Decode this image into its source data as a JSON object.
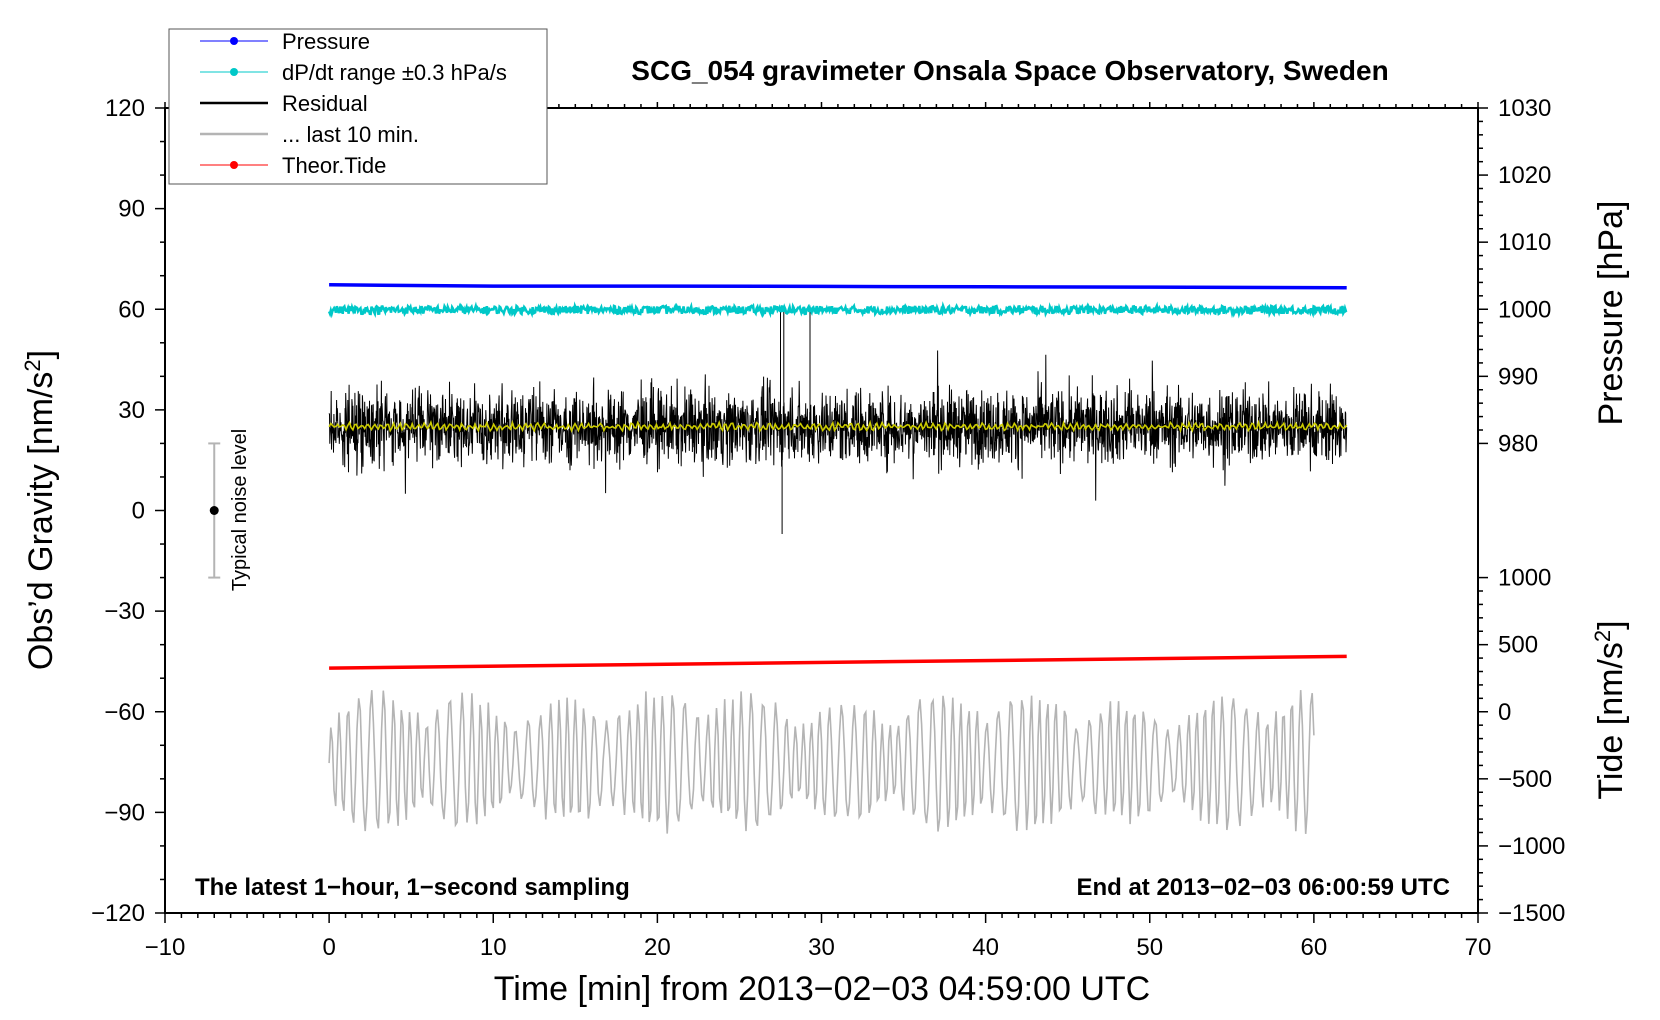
{
  "chart_data": {
    "type": "line",
    "title": "SCG_054 gravimeter Onsala Space Observatory, Sweden",
    "xlabel": "Time [min] from 2013−02−03 04:59:00 UTC",
    "ylabel": "Obs’d Gravity [nm/s",
    "ylabel_sup": "2",
    "ylabel_tail": "]",
    "pressure_label": "Pressure [hPa]",
    "tide_label": "Tide [nm/s",
    "tide_label_sup": "2",
    "tide_label_tail": "]",
    "xlim": [
      -10,
      70
    ],
    "ylim": [
      -120,
      120
    ],
    "x_ticks": [
      -10,
      0,
      10,
      20,
      30,
      40,
      50,
      60,
      70
    ],
    "x_tick_labels": [
      "−10",
      "0",
      "10",
      "20",
      "30",
      "40",
      "50",
      "60",
      "70"
    ],
    "y_ticks": [
      -120,
      -90,
      -60,
      -30,
      0,
      30,
      60,
      90,
      120
    ],
    "y_tick_labels": [
      "−120",
      "−90",
      "−60",
      "−30",
      "0",
      "30",
      "60",
      "90",
      "120"
    ],
    "pressure_axis": {
      "ticks": [
        980,
        990,
        1000,
        1010,
        1020,
        1030
      ],
      "tick_labels": [
        "980",
        "990",
        "1000",
        "1010",
        "1020",
        "1030"
      ],
      "maps_to_gravity": [
        [
          980,
          20
        ],
        [
          1030,
          120
        ]
      ]
    },
    "tide_axis": {
      "ticks": [
        -1500,
        -1000,
        -500,
        0,
        500,
        1000
      ],
      "tick_labels": [
        "−1500",
        "−1000",
        "−500",
        "0",
        "500",
        "1000"
      ],
      "maps_to_gravity": [
        [
          -1500,
          -120
        ],
        [
          1000,
          -20
        ]
      ]
    },
    "legend": [
      {
        "label": "Pressure",
        "color": "#0000ff",
        "marker": true
      },
      {
        "label": "dP/dt range ±0.3 hPa/s",
        "color": "#00c8c8",
        "marker": true
      },
      {
        "label": "Residual",
        "color": "#000000",
        "marker": false
      },
      {
        "label": "... last 10 min.",
        "color": "#b4b4b4",
        "marker": false
      },
      {
        "label": "Theor.Tide",
        "color": "#ff0000",
        "marker": true
      }
    ],
    "annotations": {
      "left": "The latest 1−hour, 1−second sampling",
      "right": "End at 2013−02−03 06:00:59 UTC",
      "noise": "Typical noise level"
    },
    "noise_bar": {
      "x": -7,
      "center": 0,
      "low": -20,
      "high": 20
    },
    "series": [
      {
        "name": "Pressure",
        "color": "#0000ff",
        "x": [
          0,
          10,
          20,
          30,
          40,
          50,
          62
        ],
        "values": [
          67.3,
          66.9,
          66.9,
          66.8,
          66.7,
          66.6,
          66.4
        ]
      },
      {
        "name": "dP/dt range",
        "color": "#00c8c8",
        "x": [
          0,
          62
        ],
        "values": [
          59.8,
          59.8
        ],
        "noise_amplitude": 1.2
      },
      {
        "name": "Residual",
        "color": "#000000",
        "x_range": [
          0,
          62
        ],
        "mean": 25,
        "typical_range": [
          10,
          40
        ],
        "min": -7,
        "max": 61
      },
      {
        "name": "Residual running mean",
        "color": "#cccc00",
        "x_range": [
          0,
          62
        ],
        "mean": 25
      },
      {
        "name": "Theor.Tide",
        "color": "#ff0000",
        "x": [
          0,
          62
        ],
        "values": [
          -47,
          -43.5
        ]
      },
      {
        "name": "... last 10 min.",
        "color": "#b4b4b4",
        "x_range": [
          0,
          60
        ],
        "mean": -75,
        "typical_range": [
          -95,
          -48
        ]
      }
    ]
  }
}
